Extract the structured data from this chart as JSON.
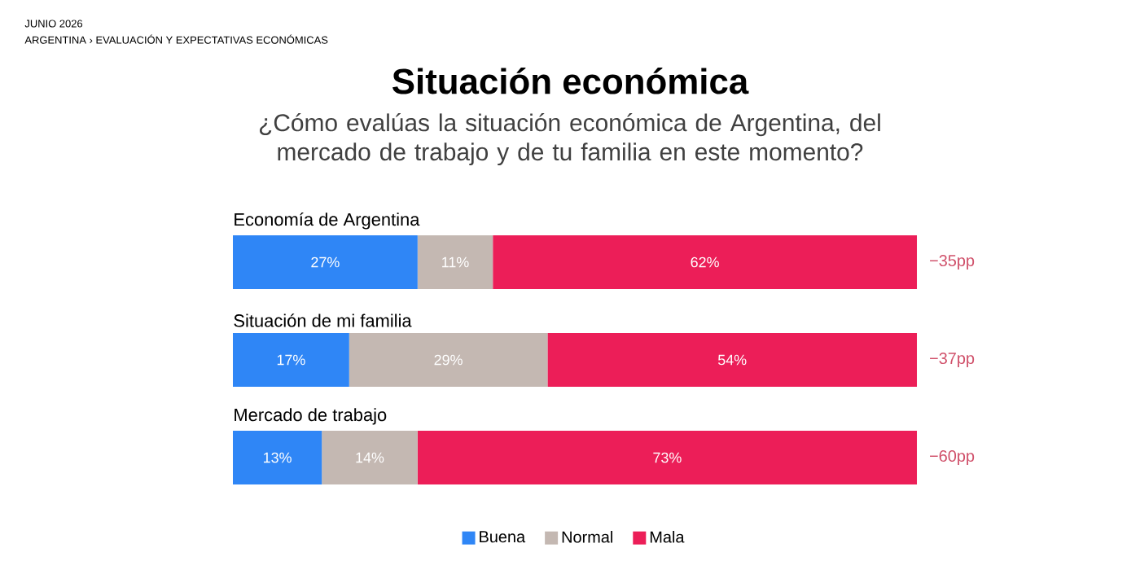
{
  "chart_data": {
    "type": "bar",
    "orientation": "horizontal",
    "stacked": true,
    "title": "Situación económica",
    "subtitle": "¿Cómo evalúas la situación económica de Argentina, del mercado de trabajo y de tu familia en este momento?",
    "categories": [
      "Economía de Argentina",
      "Situación de mi familia",
      "Mercado de trabajo"
    ],
    "series": [
      {
        "name": "Buena",
        "color": "#2f86f6",
        "values": [
          27,
          17,
          13
        ],
        "value_labels": [
          "27%",
          "17%",
          "13%"
        ]
      },
      {
        "name": "Normal",
        "color": "#c4b8b2",
        "values": [
          11,
          29,
          14
        ],
        "value_labels": [
          "11%",
          "29%",
          "14%"
        ]
      },
      {
        "name": "Mala",
        "color": "#ec1e58",
        "values": [
          62,
          54,
          73
        ],
        "value_labels": [
          "62%",
          "54%",
          "73%"
        ]
      }
    ],
    "legend": "bottom",
    "annotations": [
      "JUNIO 2026",
      "ARGENTINA › EVALUACIÓN Y EXPECTATIVAS ECONÓMICAS",
      "−35pp",
      "−37pp",
      "−60pp"
    ]
  }
}
